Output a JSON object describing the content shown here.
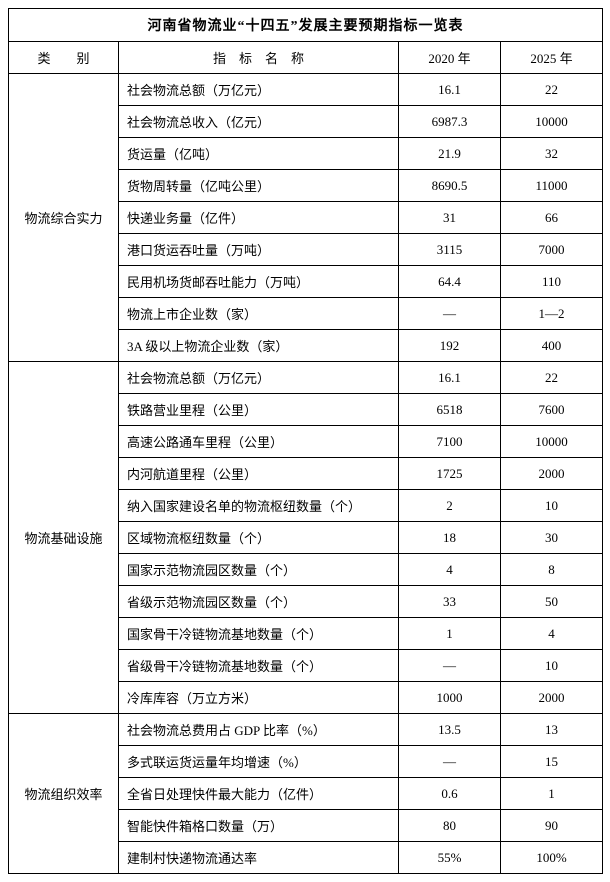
{
  "title": "河南省物流业“十四五”发展主要预期指标一览表",
  "headers": {
    "category": "类　　别",
    "indicator": "指　标　名　称",
    "year2020": "2020 年",
    "year2025": "2025 年"
  },
  "sections": [
    {
      "category": "物流综合实力",
      "rows": [
        {
          "indicator": "社会物流总额（万亿元）",
          "y2020": "16.1",
          "y2025": "22"
        },
        {
          "indicator": "社会物流总收入（亿元）",
          "y2020": "6987.3",
          "y2025": "10000"
        },
        {
          "indicator": "货运量（亿吨）",
          "y2020": "21.9",
          "y2025": "32"
        },
        {
          "indicator": "货物周转量（亿吨公里）",
          "y2020": "8690.5",
          "y2025": "11000"
        },
        {
          "indicator": "快递业务量（亿件）",
          "y2020": "31",
          "y2025": "66"
        },
        {
          "indicator": "港口货运吞吐量（万吨）",
          "y2020": "3115",
          "y2025": "7000"
        },
        {
          "indicator": "民用机场货邮吞吐能力（万吨）",
          "y2020": "64.4",
          "y2025": "110"
        },
        {
          "indicator": "物流上市企业数（家）",
          "y2020": "—",
          "y2025": "1—2"
        },
        {
          "indicator": "3A 级以上物流企业数（家）",
          "y2020": "192",
          "y2025": "400"
        }
      ]
    },
    {
      "category": "物流基础设施",
      "rows": [
        {
          "indicator": "社会物流总额（万亿元）",
          "y2020": "16.1",
          "y2025": "22"
        },
        {
          "indicator": "铁路营业里程（公里）",
          "y2020": "6518",
          "y2025": "7600"
        },
        {
          "indicator": "高速公路通车里程（公里）",
          "y2020": "7100",
          "y2025": "10000"
        },
        {
          "indicator": "内河航道里程（公里）",
          "y2020": "1725",
          "y2025": "2000"
        },
        {
          "indicator": "纳入国家建设名单的物流枢纽数量（个）",
          "y2020": "2",
          "y2025": "10"
        },
        {
          "indicator": "区域物流枢纽数量（个）",
          "y2020": "18",
          "y2025": "30"
        },
        {
          "indicator": "国家示范物流园区数量（个）",
          "y2020": "4",
          "y2025": "8"
        },
        {
          "indicator": "省级示范物流园区数量（个）",
          "y2020": "33",
          "y2025": "50"
        },
        {
          "indicator": "国家骨干冷链物流基地数量（个）",
          "y2020": "1",
          "y2025": "4"
        },
        {
          "indicator": "省级骨干冷链物流基地数量（个）",
          "y2020": "—",
          "y2025": "10"
        },
        {
          "indicator": "冷库库容（万立方米）",
          "y2020": "1000",
          "y2025": "2000"
        }
      ]
    },
    {
      "category": "物流组织效率",
      "rows": [
        {
          "indicator": "社会物流总费用占 GDP 比率（%）",
          "y2020": "13.5",
          "y2025": "13"
        },
        {
          "indicator": "多式联运货运量年均增速（%）",
          "y2020": "—",
          "y2025": "15"
        },
        {
          "indicator": "全省日处理快件最大能力（亿件）",
          "y2020": "0.6",
          "y2025": "1"
        },
        {
          "indicator": "智能快件箱格口数量（万）",
          "y2020": "80",
          "y2025": "90"
        },
        {
          "indicator": "建制村快递物流通达率",
          "y2020": "55%",
          "y2025": "100%"
        }
      ]
    }
  ]
}
